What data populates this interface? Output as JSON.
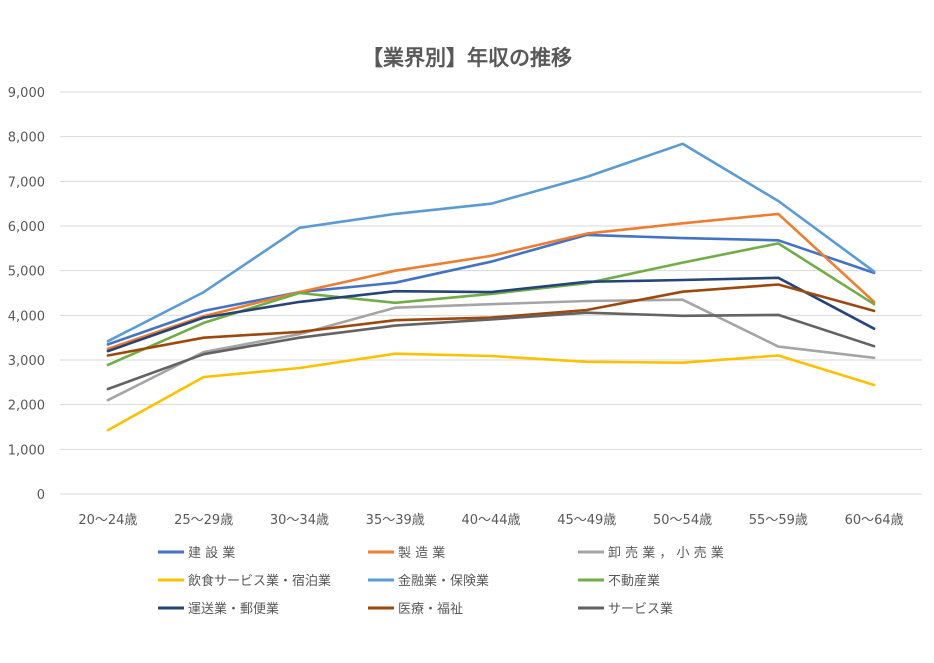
{
  "chart_data": {
    "type": "line",
    "title": "【業界別】年収の推移",
    "xlabel": "",
    "ylabel": "",
    "ylim": [
      0,
      9000
    ],
    "yticks": [
      0,
      1000,
      2000,
      3000,
      4000,
      5000,
      6000,
      7000,
      8000,
      9000
    ],
    "ytick_labels": [
      "0",
      "1,000",
      "2,000",
      "3,000",
      "4,000",
      "5,000",
      "6,000",
      "7,000",
      "8,000",
      "9,000"
    ],
    "grid": true,
    "legend_position": "bottom",
    "categories": [
      "20～24歳",
      "25～29歳",
      "30～34歳",
      "35～39歳",
      "40～44歳",
      "45～49歳",
      "50～54歳",
      "55～59歳",
      "60～64歳"
    ],
    "series": [
      {
        "name": "建 設 業",
        "color": "#4472c4",
        "values": [
          3350,
          4100,
          4520,
          4730,
          5200,
          5800,
          5730,
          5680,
          4950
        ]
      },
      {
        "name": "製 造 業",
        "color": "#ed7d31",
        "values": [
          3250,
          3980,
          4520,
          5000,
          5330,
          5830,
          6060,
          6270,
          4300
        ]
      },
      {
        "name": "卸 売 業 ， 小 売 業",
        "color": "#a5a5a5",
        "values": [
          2100,
          3180,
          3580,
          4170,
          4250,
          4320,
          4350,
          3300,
          3050
        ]
      },
      {
        "name": "飲食サービス業・宿泊業",
        "color": "#ffc000",
        "values": [
          1430,
          2620,
          2820,
          3140,
          3090,
          2960,
          2940,
          3100,
          2440
        ]
      },
      {
        "name": "金融業・保険業",
        "color": "#5b9bd5",
        "values": [
          3420,
          4520,
          5960,
          6270,
          6500,
          7100,
          7840,
          6560,
          4980
        ]
      },
      {
        "name": "不動産業",
        "color": "#70ad47",
        "values": [
          2890,
          3830,
          4500,
          4280,
          4480,
          4720,
          5180,
          5610,
          4250
        ]
      },
      {
        "name": "運送業・郵便業",
        "color": "#264478",
        "values": [
          3200,
          3950,
          4300,
          4540,
          4520,
          4750,
          4790,
          4840,
          3700
        ]
      },
      {
        "name": "医療・福祉",
        "color": "#9e480e",
        "values": [
          3100,
          3500,
          3630,
          3890,
          3950,
          4120,
          4530,
          4690,
          4100
        ]
      },
      {
        "name": "サービス業",
        "color": "#636363",
        "values": [
          2350,
          3130,
          3500,
          3770,
          3910,
          4060,
          3990,
          4010,
          3310
        ]
      }
    ]
  }
}
